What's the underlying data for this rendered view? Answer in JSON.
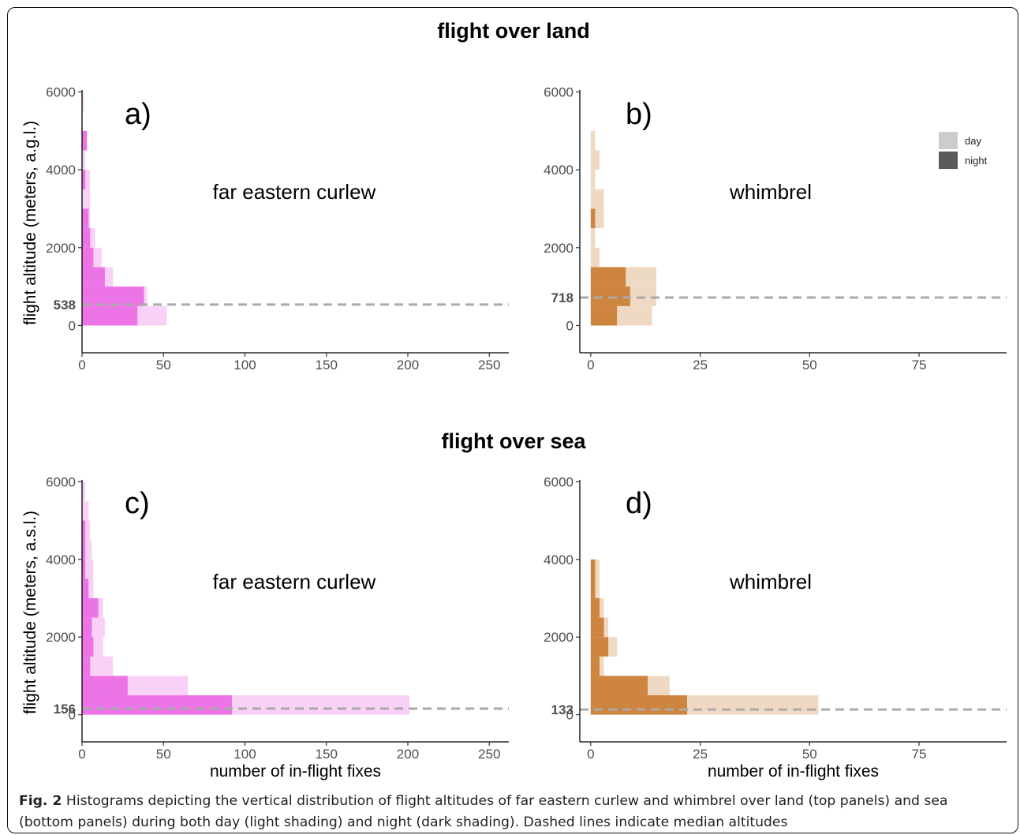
{
  "caption": {
    "label": "Fig. 2",
    "text": "Histograms depicting the vertical distribution of flight altitudes of far eastern curlew and whimbrel over land (top panels) and sea (bottom panels) during both day (light shading) and night (dark shading). Dashed lines indicate median altitudes"
  },
  "row_titles": [
    "flight over land",
    "flight over sea"
  ],
  "colors": {
    "curlew_day": "#f9d1f6",
    "curlew_night": "#ec74e6",
    "whimbrel_day": "#f0d9c3",
    "whimbrel_night": "#cd853f",
    "median_line": "#aaaaaa",
    "legend_day": "#cccccc",
    "legend_night": "#595959"
  },
  "legend": {
    "placement": "top-right of panel b",
    "entries": [
      {
        "label": "day",
        "color_key": "legend_day"
      },
      {
        "label": "night",
        "color_key": "legend_night"
      }
    ]
  },
  "chart_data": [
    {
      "type": "bar",
      "orientation": "horizontal",
      "panel_label": "a)",
      "title": "flight over land",
      "annotation": "far eastern curlew",
      "ylabel": "flight altitude (meters, a.g.l.)",
      "xlabel": "",
      "xlim": [
        0,
        262
      ],
      "xticks": [
        0,
        50,
        100,
        150,
        200,
        250
      ],
      "ylim": [
        -700,
        6050
      ],
      "yticks": [
        0,
        2000,
        4000,
        6000
      ],
      "median": 538,
      "color_day": "curlew_day",
      "color_night": "curlew_night",
      "bin_width": 500,
      "series": [
        {
          "name": "day",
          "bins": [
            [
              0,
              52
            ],
            [
              500,
              40
            ],
            [
              1000,
              19
            ],
            [
              1500,
              12
            ],
            [
              2000,
              8
            ],
            [
              2500,
              5
            ],
            [
              3000,
              5
            ],
            [
              3500,
              5
            ],
            [
              4000,
              2
            ],
            [
              4500,
              2
            ],
            [
              5500,
              1
            ]
          ]
        },
        {
          "name": "night",
          "bins": [
            [
              0,
              34
            ],
            [
              500,
              38
            ],
            [
              1000,
              14
            ],
            [
              1500,
              7
            ],
            [
              2000,
              5
            ],
            [
              2500,
              4
            ],
            [
              3500,
              2
            ],
            [
              4500,
              3
            ]
          ]
        }
      ]
    },
    {
      "type": "bar",
      "orientation": "horizontal",
      "panel_label": "b)",
      "title": "flight over land",
      "annotation": "whimbrel",
      "ylabel": "",
      "xlabel": "",
      "xlim": [
        -2.5,
        95
      ],
      "xticks": [
        0,
        25,
        50,
        75
      ],
      "ylim": [
        -700,
        6050
      ],
      "yticks": [
        0,
        2000,
        4000,
        6000
      ],
      "median": 718,
      "color_day": "whimbrel_day",
      "color_night": "whimbrel_night",
      "bin_width": 500,
      "series": [
        {
          "name": "day",
          "bins": [
            [
              0,
              14
            ],
            [
              500,
              15
            ],
            [
              1000,
              15
            ],
            [
              1500,
              2
            ],
            [
              2000,
              1
            ],
            [
              2500,
              3
            ],
            [
              3000,
              3
            ],
            [
              3500,
              1
            ],
            [
              4000,
              2
            ],
            [
              4500,
              1
            ]
          ]
        },
        {
          "name": "night",
          "bins": [
            [
              0,
              6
            ],
            [
              500,
              9
            ],
            [
              1000,
              8
            ],
            [
              2500,
              1
            ]
          ]
        }
      ]
    },
    {
      "type": "bar",
      "orientation": "horizontal",
      "panel_label": "c)",
      "title": "flight over sea",
      "annotation": "far eastern curlew",
      "ylabel": "flight altitude (meters, a.s.l.)",
      "xlabel": "number of in-flight fixes",
      "xlim": [
        0,
        262
      ],
      "xticks": [
        0,
        50,
        100,
        150,
        200,
        250
      ],
      "ylim": [
        -700,
        6050
      ],
      "yticks": [
        0,
        2000,
        4000,
        6000
      ],
      "median": 156,
      "color_day": "curlew_day",
      "color_night": "curlew_night",
      "bin_width": 500,
      "series": [
        {
          "name": "day",
          "bins": [
            [
              0,
              201
            ],
            [
              500,
              65
            ],
            [
              1000,
              19
            ],
            [
              1500,
              13
            ],
            [
              2000,
              14
            ],
            [
              2500,
              13
            ],
            [
              3000,
              7
            ],
            [
              3500,
              7
            ],
            [
              4000,
              6
            ],
            [
              4500,
              5
            ],
            [
              5000,
              4
            ],
            [
              5500,
              2
            ]
          ]
        },
        {
          "name": "night",
          "bins": [
            [
              0,
              92
            ],
            [
              500,
              28
            ],
            [
              1000,
              5
            ],
            [
              1500,
              7
            ],
            [
              2000,
              6
            ],
            [
              2500,
              10
            ],
            [
              3000,
              4
            ],
            [
              3500,
              2
            ],
            [
              4000,
              2
            ],
            [
              4500,
              2
            ]
          ]
        }
      ]
    },
    {
      "type": "bar",
      "orientation": "horizontal",
      "panel_label": "d)",
      "title": "flight over sea",
      "annotation": "whimbrel",
      "ylabel": "",
      "xlabel": "number of in-flight fixes",
      "xlim": [
        -2.5,
        95
      ],
      "xticks": [
        0,
        25,
        50,
        75
      ],
      "ylim": [
        -700,
        6050
      ],
      "yticks": [
        0,
        2000,
        4000,
        6000
      ],
      "median": 133,
      "color_day": "whimbrel_day",
      "color_night": "whimbrel_night",
      "bin_width": 500,
      "series": [
        {
          "name": "day",
          "bins": [
            [
              0,
              52
            ],
            [
              500,
              18
            ],
            [
              1000,
              3
            ],
            [
              1500,
              6
            ],
            [
              2000,
              4
            ],
            [
              2500,
              3
            ],
            [
              3000,
              2
            ],
            [
              3500,
              2
            ]
          ]
        },
        {
          "name": "night",
          "bins": [
            [
              0,
              22
            ],
            [
              500,
              13
            ],
            [
              1000,
              2
            ],
            [
              1500,
              4
            ],
            [
              2000,
              3
            ],
            [
              2500,
              2
            ],
            [
              3000,
              1
            ],
            [
              3500,
              1
            ]
          ]
        }
      ]
    }
  ]
}
